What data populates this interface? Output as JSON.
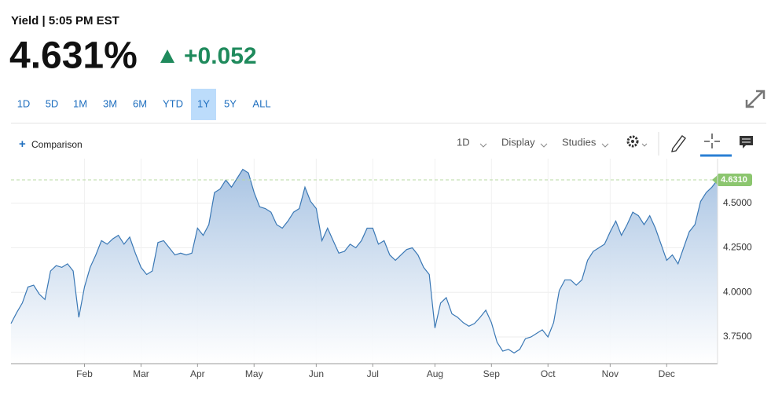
{
  "header": {
    "title": "Yield | 5:05 PM EST",
    "price": "4.631%",
    "change": "+0.052"
  },
  "toolbar": {
    "ranges": [
      "1D",
      "5D",
      "1M",
      "3M",
      "6M",
      "YTD",
      "1Y",
      "5Y",
      "ALL"
    ],
    "active_range": 6,
    "comparison": "Comparison",
    "interval": "1D",
    "display": "Display",
    "studies": "Studies"
  },
  "chart_data": {
    "type": "area",
    "series": [
      {
        "name": "Yield",
        "color": "#3a78b5",
        "values": [
          3.825,
          3.886,
          3.94,
          4.03,
          4.04,
          3.99,
          3.96,
          4.12,
          4.15,
          4.14,
          4.16,
          4.12,
          3.86,
          4.03,
          4.14,
          4.21,
          4.29,
          4.27,
          4.3,
          4.32,
          4.27,
          4.31,
          4.22,
          4.14,
          4.1,
          4.12,
          4.28,
          4.29,
          4.25,
          4.21,
          4.22,
          4.21,
          4.22,
          4.36,
          4.32,
          4.38,
          4.56,
          4.58,
          4.63,
          4.59,
          4.64,
          4.69,
          4.67,
          4.56,
          4.48,
          4.47,
          4.45,
          4.38,
          4.36,
          4.4,
          4.45,
          4.47,
          4.59,
          4.51,
          4.47,
          4.29,
          4.36,
          4.29,
          4.22,
          4.23,
          4.27,
          4.25,
          4.29,
          4.36,
          4.36,
          4.27,
          4.29,
          4.21,
          4.18,
          4.21,
          4.24,
          4.25,
          4.21,
          4.14,
          4.1,
          3.8,
          3.94,
          3.97,
          3.88,
          3.86,
          3.83,
          3.81,
          3.825,
          3.86,
          3.9,
          3.83,
          3.72,
          3.67,
          3.68,
          3.66,
          3.68,
          3.74,
          3.75,
          3.77,
          3.79,
          3.75,
          3.83,
          4.01,
          4.07,
          4.07,
          4.04,
          4.07,
          4.18,
          4.23,
          4.25,
          4.27,
          4.34,
          4.4,
          4.32,
          4.38,
          4.45,
          4.43,
          4.38,
          4.43,
          4.36,
          4.27,
          4.18,
          4.21,
          4.16,
          4.25,
          4.34,
          4.38,
          4.51,
          4.56,
          4.59,
          4.631
        ]
      }
    ],
    "last_value_label": "4.6310",
    "xlim": [
      0,
      125
    ],
    "xticks": [
      {
        "value": 13,
        "label": "Feb"
      },
      {
        "value": 23,
        "label": "Mar"
      },
      {
        "value": 33,
        "label": "Apr"
      },
      {
        "value": 43,
        "label": "May"
      },
      {
        "value": 54,
        "label": "Jun"
      },
      {
        "value": 64,
        "label": "Jul"
      },
      {
        "value": 75,
        "label": "Aug"
      },
      {
        "value": 85,
        "label": "Sep"
      },
      {
        "value": 95,
        "label": "Oct"
      },
      {
        "value": 106,
        "label": "Nov"
      },
      {
        "value": 116,
        "label": "Dec"
      }
    ],
    "ylim": [
      3.6,
      4.75
    ],
    "yticks": [
      {
        "value": 3.75,
        "label": "3.7500"
      },
      {
        "value": 4,
        "label": "4.0000"
      },
      {
        "value": 4.25,
        "label": "4.2500"
      },
      {
        "value": 4.5,
        "label": "4.5000"
      }
    ],
    "grid": true
  }
}
